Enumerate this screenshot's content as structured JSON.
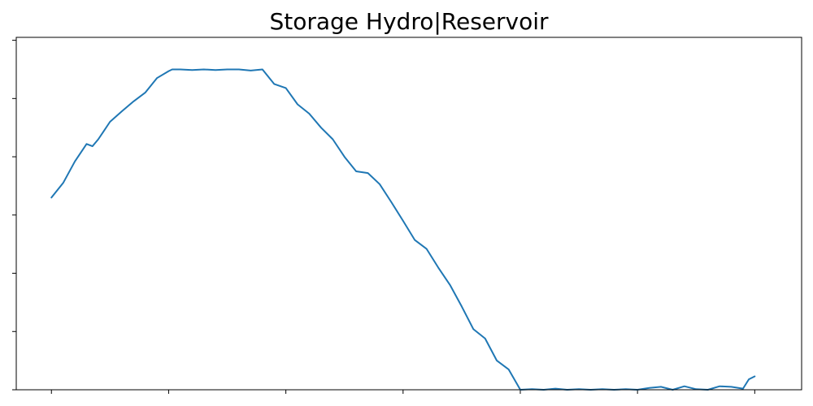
{
  "chart_data": {
    "type": "line",
    "title": "Storage Hydro|Reservoir",
    "xlabel": "",
    "ylabel": "",
    "x_range": [
      -3,
      64
    ],
    "y_range": [
      0,
      6.05
    ],
    "x_ticks": [
      0,
      10,
      20,
      30,
      40,
      50,
      60
    ],
    "y_ticks": [
      0,
      1,
      2,
      3,
      4,
      5,
      6
    ],
    "grid": false,
    "series_color": "#1f77b4",
    "series": [
      {
        "x": [
          0,
          1,
          2,
          3,
          3.5,
          4,
          5,
          6,
          7,
          8,
          9,
          10,
          10.3,
          11,
          12,
          13,
          14,
          15,
          16,
          17,
          18,
          19,
          20,
          21,
          22,
          23,
          24,
          25,
          26,
          27,
          28,
          29,
          30,
          31,
          32,
          33,
          34,
          35,
          36,
          37,
          38,
          39,
          40,
          41,
          42,
          43,
          44,
          45,
          46,
          47,
          48,
          49,
          50,
          51,
          52,
          53,
          54,
          55,
          56,
          57,
          58,
          59,
          59.5,
          60
        ],
        "y": [
          3.3,
          3.55,
          3.92,
          4.22,
          4.18,
          4.3,
          4.6,
          4.78,
          4.95,
          5.1,
          5.35,
          5.47,
          5.5,
          5.5,
          5.49,
          5.5,
          5.49,
          5.5,
          5.5,
          5.48,
          5.5,
          5.25,
          5.18,
          4.9,
          4.74,
          4.5,
          4.3,
          4.0,
          3.75,
          3.72,
          3.53,
          3.22,
          2.9,
          2.57,
          2.42,
          2.1,
          1.8,
          1.43,
          1.04,
          0.88,
          0.5,
          0.35,
          0.0,
          0.01,
          0.0,
          0.02,
          0.0,
          0.01,
          0.0,
          0.01,
          0.0,
          0.01,
          0.0,
          0.03,
          0.05,
          0.0,
          0.06,
          0.01,
          0.0,
          0.06,
          0.05,
          0.02,
          0.18,
          0.23
        ]
      }
    ]
  }
}
